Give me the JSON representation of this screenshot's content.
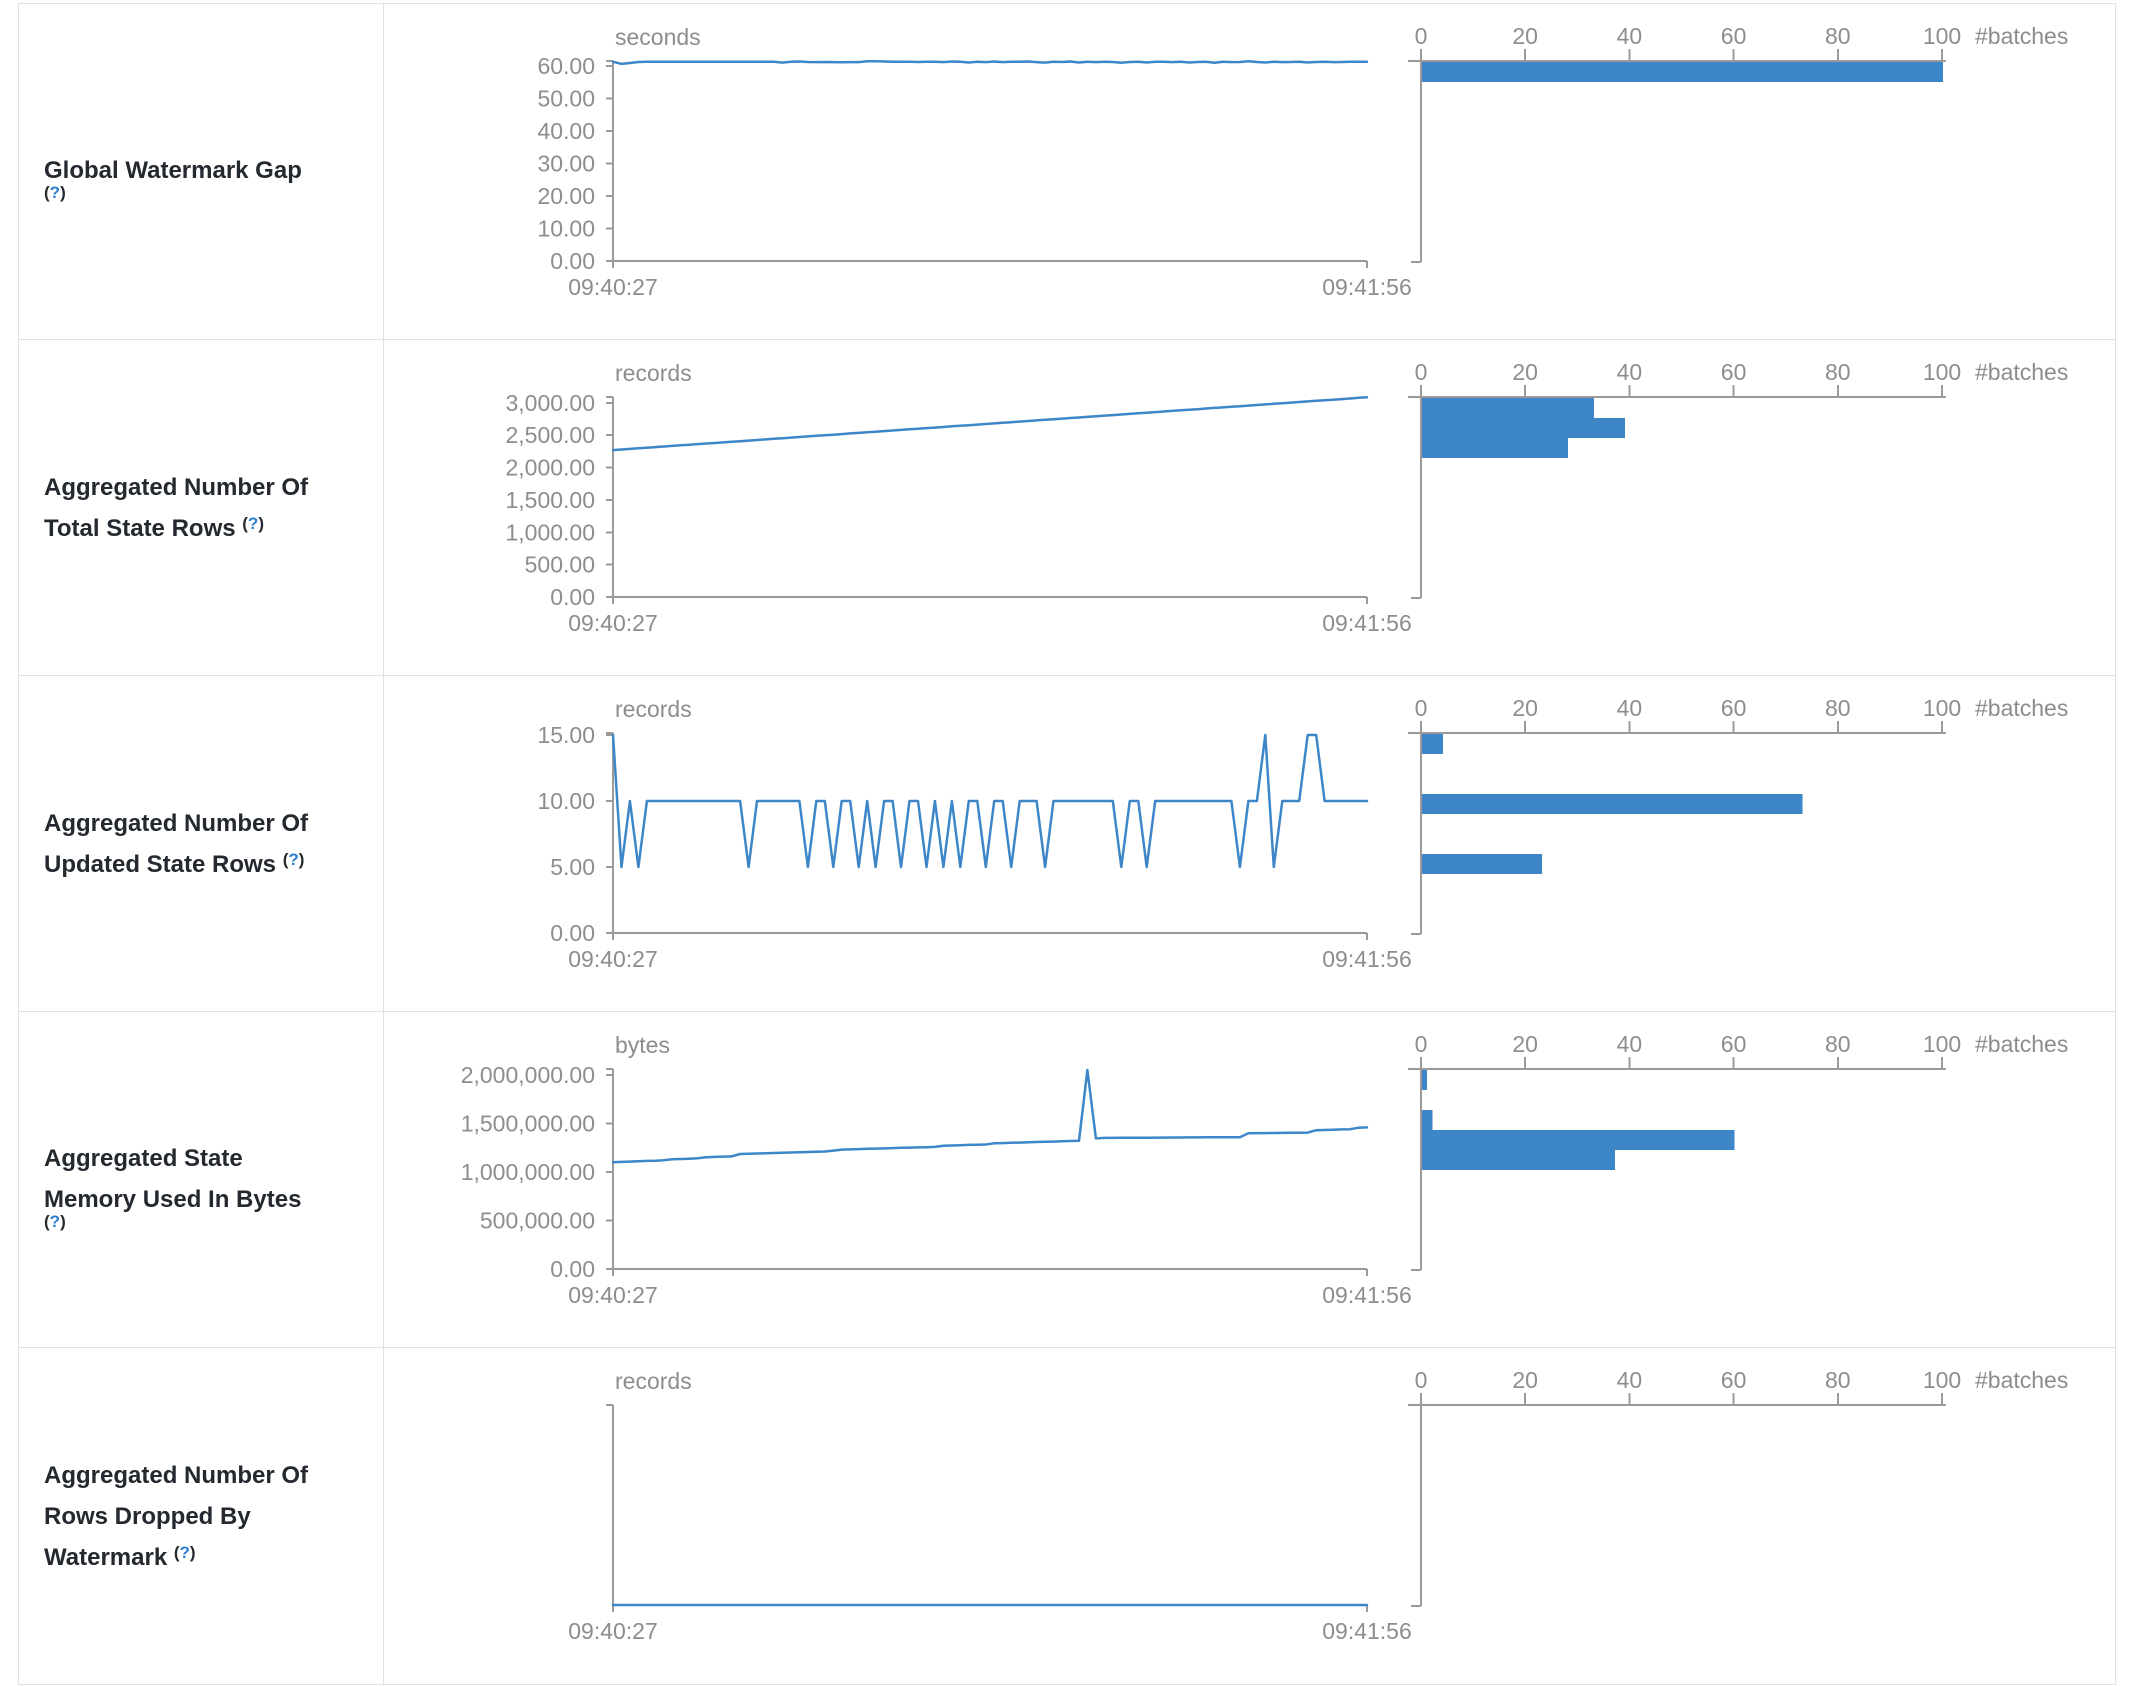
{
  "colors": {
    "accent": "#3d86c8",
    "axis": "#9a9a9a",
    "tick_text": "#8d8d8d",
    "label_text": "#24292f",
    "help_blue": "#2f7fd1",
    "border": "#dee2e6"
  },
  "help": {
    "open": "(",
    "q": "?",
    "close": ")"
  },
  "histogram_axis": {
    "unit_label": "#batches",
    "tick_labels": [
      "0",
      "20",
      "40",
      "60",
      "80",
      "100"
    ],
    "tick_values": [
      0,
      20,
      40,
      60,
      80,
      100
    ],
    "xlim": [
      0,
      100
    ]
  },
  "time_axis": {
    "start": "09:40:27",
    "end": "09:41:56"
  },
  "table": {
    "rows": [
      {
        "label_lines": [
          "Global Watermark Gap"
        ],
        "help": "(?)",
        "unit": "seconds",
        "chart_data": {
          "type": "line",
          "title": "Global Watermark Gap",
          "ylabel": "seconds",
          "x_start": "09:40:27",
          "x_end": "09:41:56",
          "ylim": [
            0,
            61.5
          ],
          "grid": false,
          "yticks": [
            {
              "v": 60,
              "label": "60.00"
            },
            {
              "v": 50,
              "label": "50.00"
            },
            {
              "v": 40,
              "label": "40.00"
            },
            {
              "v": 30,
              "label": "30.00"
            },
            {
              "v": 20,
              "label": "20.00"
            },
            {
              "v": 10,
              "label": "10.00"
            },
            {
              "v": 0,
              "label": "0.00"
            }
          ],
          "values": [
            61.3,
            60.6,
            60.9,
            61.2,
            61.25,
            61.3,
            61.3,
            61.25,
            61.3,
            61.3,
            61.3,
            61.25,
            61.3,
            61.3,
            61.25,
            61.3,
            61.3,
            61.3,
            61.25,
            61.3,
            61.0,
            61.3,
            61.35,
            61.2,
            61.15,
            61.2,
            61.15,
            61.1,
            61.15,
            61.15,
            61.45,
            61.4,
            61.35,
            61.3,
            61.25,
            61.25,
            61.2,
            61.25,
            61.3,
            61.15,
            61.35,
            61.25,
            61.05,
            61.25,
            61.15,
            61.35,
            61.15,
            61.25,
            61.25,
            61.35,
            61.15,
            61.0,
            61.3,
            61.2,
            61.35,
            61.05,
            61.25,
            61.15,
            61.3,
            61.2,
            60.95,
            61.2,
            61.3,
            61.05,
            61.3,
            61.25,
            61.15,
            61.3,
            61.05,
            61.2,
            61.3,
            60.95,
            61.3,
            61.15,
            61.2,
            61.4,
            61.2,
            61.05,
            61.3,
            61.15,
            61.2,
            61.3,
            61.05,
            61.2,
            61.3,
            61.15,
            61.2,
            61.3,
            61.25,
            61.3
          ]
        },
        "histogram": {
          "type": "bar",
          "xlabel": "#batches",
          "bin_count": 10,
          "bars": [
            {
              "bin": 0,
              "count": 100
            }
          ]
        }
      },
      {
        "label_lines": [
          "Aggregated Number Of",
          "Total State Rows"
        ],
        "help": "(?)",
        "unit": "records",
        "chart_data": {
          "type": "line",
          "title": "Aggregated Number Of Total State Rows",
          "ylabel": "records",
          "x_start": "09:40:27",
          "x_end": "09:41:56",
          "ylim": [
            0,
            3090
          ],
          "grid": false,
          "yticks": [
            {
              "v": 3000,
              "label": "3,000.00"
            },
            {
              "v": 2500,
              "label": "2,500.00"
            },
            {
              "v": 2000,
              "label": "2,000.00"
            },
            {
              "v": 1500,
              "label": "1,500.00"
            },
            {
              "v": 1000,
              "label": "1,000.00"
            },
            {
              "v": 500,
              "label": "500.00"
            },
            {
              "v": 0,
              "label": "0.00"
            }
          ],
          "values": [
            2270,
            2279,
            2288,
            2297,
            2307,
            2316,
            2325,
            2334,
            2343,
            2352,
            2362,
            2371,
            2380,
            2389,
            2398,
            2407,
            2417,
            2426,
            2435,
            2444,
            2453,
            2462,
            2472,
            2481,
            2490,
            2499,
            2508,
            2517,
            2527,
            2536,
            2545,
            2554,
            2563,
            2572,
            2582,
            2591,
            2600,
            2609,
            2618,
            2627,
            2637,
            2646,
            2655,
            2664,
            2673,
            2682,
            2692,
            2701,
            2710,
            2719,
            2728,
            2737,
            2747,
            2756,
            2765,
            2774,
            2783,
            2792,
            2802,
            2811,
            2820,
            2829,
            2838,
            2847,
            2857,
            2866,
            2875,
            2884,
            2893,
            2902,
            2912,
            2921,
            2930,
            2939,
            2948,
            2957,
            2967,
            2976,
            2985,
            2994,
            3003,
            3012,
            3022,
            3031,
            3040,
            3049,
            3058,
            3067,
            3077,
            3085
          ]
        },
        "histogram": {
          "type": "bar",
          "xlabel": "#batches",
          "bin_count": 10,
          "bars": [
            {
              "bin": 0,
              "count": 33
            },
            {
              "bin": 1,
              "count": 39
            },
            {
              "bin": 2,
              "count": 28
            }
          ]
        }
      },
      {
        "label_lines": [
          "Aggregated Number Of",
          "Updated State Rows"
        ],
        "help": "(?)",
        "unit": "records",
        "chart_data": {
          "type": "line",
          "title": "Aggregated Number Of Updated State Rows",
          "ylabel": "records",
          "x_start": "09:40:27",
          "x_end": "09:41:56",
          "ylim": [
            0,
            15.15
          ],
          "grid": false,
          "yticks": [
            {
              "v": 15,
              "label": "15.00"
            },
            {
              "v": 10,
              "label": "10.00"
            },
            {
              "v": 5,
              "label": "5.00"
            },
            {
              "v": 0,
              "label": "0.00"
            }
          ],
          "values": [
            15,
            5,
            10,
            5,
            10,
            10,
            10,
            10,
            10,
            10,
            10,
            10,
            10,
            10,
            10,
            10,
            5,
            10,
            10,
            10,
            10,
            10,
            10,
            5,
            10,
            10,
            5,
            10,
            10,
            5,
            10,
            5,
            10,
            10,
            5,
            10,
            10,
            5,
            10,
            5,
            10,
            5,
            10,
            10,
            5,
            10,
            10,
            5,
            10,
            10,
            10,
            5,
            10,
            10,
            10,
            10,
            10,
            10,
            10,
            10,
            5,
            10,
            10,
            5,
            10,
            10,
            10,
            10,
            10,
            10,
            10,
            10,
            10,
            10,
            5,
            10,
            10,
            15,
            5,
            10,
            10,
            10,
            15,
            15,
            10,
            10,
            10,
            10,
            10,
            10
          ]
        },
        "histogram": {
          "type": "bar",
          "xlabel": "#batches",
          "bin_count": 10,
          "bars": [
            {
              "bin": 0,
              "count": 4
            },
            {
              "bin": 3,
              "count": 73
            },
            {
              "bin": 6,
              "count": 23
            }
          ]
        }
      },
      {
        "label_lines": [
          "Aggregated State",
          "Memory Used In Bytes"
        ],
        "help": "(?)",
        "unit": "bytes",
        "chart_data": {
          "type": "line",
          "title": "Aggregated State Memory Used In Bytes",
          "ylabel": "bytes",
          "x_start": "09:40:27",
          "x_end": "09:41:56",
          "ylim": [
            0,
            2060000
          ],
          "grid": false,
          "yticks": [
            {
              "v": 2000000,
              "label": "2,000,000.00"
            },
            {
              "v": 1500000,
              "label": "1,500,000.00"
            },
            {
              "v": 1000000,
              "label": "1,000,000.00"
            },
            {
              "v": 500000,
              "label": "500,000.00"
            },
            {
              "v": 0,
              "label": "0.00"
            }
          ],
          "values": [
            1100000,
            1103000,
            1106000,
            1110000,
            1113000,
            1116000,
            1120000,
            1130000,
            1133000,
            1136000,
            1140000,
            1150000,
            1155000,
            1158000,
            1160000,
            1185000,
            1188000,
            1190000,
            1192000,
            1195000,
            1198000,
            1200000,
            1202000,
            1205000,
            1208000,
            1210000,
            1220000,
            1230000,
            1232000,
            1235000,
            1238000,
            1240000,
            1242000,
            1245000,
            1248000,
            1250000,
            1252000,
            1255000,
            1258000,
            1270000,
            1272000,
            1275000,
            1278000,
            1280000,
            1282000,
            1295000,
            1297000,
            1300000,
            1302000,
            1305000,
            1308000,
            1310000,
            1312000,
            1315000,
            1318000,
            1320000,
            2050000,
            1345000,
            1350000,
            1350000,
            1351000,
            1351000,
            1352000,
            1352000,
            1353000,
            1353000,
            1354000,
            1354000,
            1355000,
            1355000,
            1356000,
            1356000,
            1357000,
            1357000,
            1358000,
            1398000,
            1400000,
            1400000,
            1401000,
            1402000,
            1403000,
            1404000,
            1405000,
            1430000,
            1432000,
            1435000,
            1438000,
            1440000,
            1455000,
            1458000
          ]
        },
        "histogram": {
          "type": "bar",
          "xlabel": "#batches",
          "bin_count": 10,
          "bars": [
            {
              "bin": 0,
              "count": 1
            },
            {
              "bin": 2,
              "count": 2
            },
            {
              "bin": 3,
              "count": 60
            },
            {
              "bin": 4,
              "count": 37
            }
          ]
        }
      },
      {
        "label_lines": [
          "Aggregated Number Of",
          "Rows Dropped By",
          "Watermark"
        ],
        "help": "(?)",
        "unit": "records",
        "chart_data": {
          "type": "line",
          "title": "Aggregated Number Of Rows Dropped By Watermark",
          "ylabel": "records",
          "x_start": "09:40:27",
          "x_end": "09:41:56",
          "ylim": [
            0,
            1
          ],
          "grid": false,
          "yticks": [],
          "values": [
            0,
            0
          ]
        },
        "histogram": {
          "type": "bar",
          "xlabel": "#batches",
          "bin_count": 10,
          "bars": []
        }
      }
    ]
  }
}
